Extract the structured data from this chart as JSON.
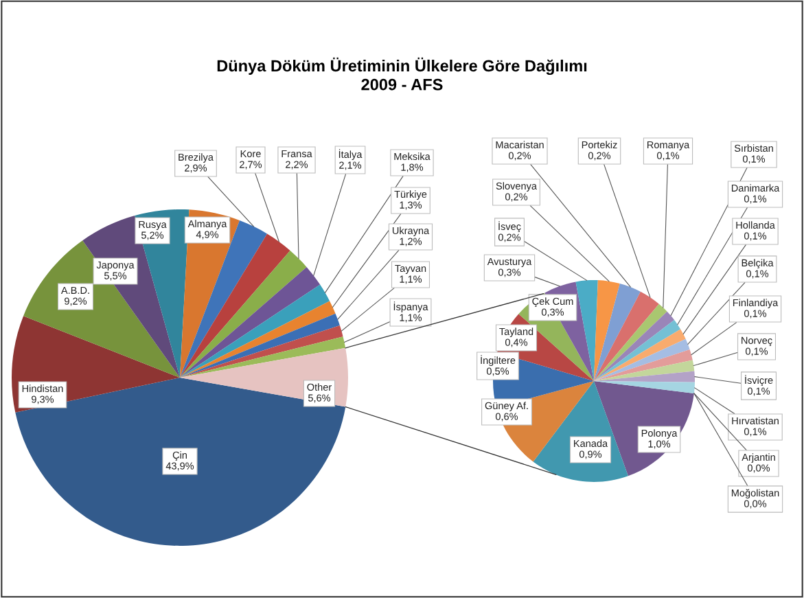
{
  "chart_data": [
    {
      "type": "pie",
      "title": "Dünya Döküm Üretiminin Ülkelere Göre Dağılımı\n2009 - AFS",
      "value_labels": [
        "43,9%",
        "9,3%",
        "9,2%",
        "5,5%",
        "5,2%",
        "4,9%",
        "2,9%",
        "2,7%",
        "2,2%",
        "2,1%",
        "1,8%",
        "1,3%",
        "1,2%",
        "1,1%",
        "1,1%",
        "5,6%"
      ],
      "categories": [
        "Çin",
        "Hindistan",
        "A.B.D.",
        "Japonya",
        "Rusya",
        "Almanya",
        "Brezilya",
        "Kore",
        "Fransa",
        "İtalya",
        "Meksika",
        "Türkiye",
        "Ukrayna",
        "Tayvan",
        "İspanya",
        "Other"
      ],
      "values": [
        43.9,
        9.3,
        9.2,
        5.5,
        5.2,
        4.9,
        2.9,
        2.7,
        2.2,
        2.1,
        1.8,
        1.3,
        1.2,
        1.1,
        1.1,
        5.6
      ],
      "colors": [
        "#335B8C",
        "#8E3533",
        "#77933C",
        "#604A7B",
        "#31859C",
        "#D9772F",
        "#3F74B9",
        "#B8413E",
        "#8AAE4A",
        "#6E5596",
        "#3AA0BB",
        "#E8832F",
        "#3B6FB5",
        "#C0504D",
        "#9BBB59",
        "#E6C3C1"
      ]
    },
    {
      "type": "pie",
      "value_labels": [
        "1,0%",
        "0,9%",
        "0,6%",
        "0,5%",
        "0,4%",
        "0,3%",
        "0,3%",
        "0,2%",
        "0,2%",
        "0,2%",
        "0,2%",
        "0,1%",
        "0,1%",
        "0,1%",
        "0,1%",
        "0,1%",
        "0,1%",
        "0,1%",
        "0,1%",
        "0,1%",
        "0,0%",
        "0,0%"
      ],
      "categories": [
        "Polonya",
        "Kanada",
        "Güney Af.",
        "İngiltere",
        "Tayland",
        "Çek Cum",
        "Avusturya",
        "İsveç",
        "Slovenya",
        "Macaristan",
        "Portekiz",
        "Romanya",
        "Sırbistan",
        "Danimarka",
        "Hollanda",
        "Belçika",
        "Finlandiya",
        "Norveç",
        "İsviçre",
        "Hırvatistan",
        "Arjantin",
        "Moğolistan"
      ],
      "values": [
        1.0,
        0.9,
        0.6,
        0.5,
        0.4,
        0.3,
        0.3,
        0.2,
        0.2,
        0.2,
        0.2,
        0.1,
        0.1,
        0.1,
        0.1,
        0.1,
        0.1,
        0.1,
        0.1,
        0.1,
        0.0,
        0.0
      ],
      "colors": [
        "#71588F",
        "#4198AF",
        "#DB843D",
        "#3A6EAE",
        "#B84744",
        "#94B55B",
        "#7E62A0",
        "#4BACC6",
        "#F79646",
        "#7F9FD3",
        "#D9706D",
        "#A9C770",
        "#9A85B8",
        "#74C0D4",
        "#F9AB6E",
        "#A5BDE3",
        "#E39C9A",
        "#C3D69B",
        "#B3A2C7",
        "#A5D5E2",
        "#FAC090",
        "#B9CDE5"
      ]
    }
  ]
}
